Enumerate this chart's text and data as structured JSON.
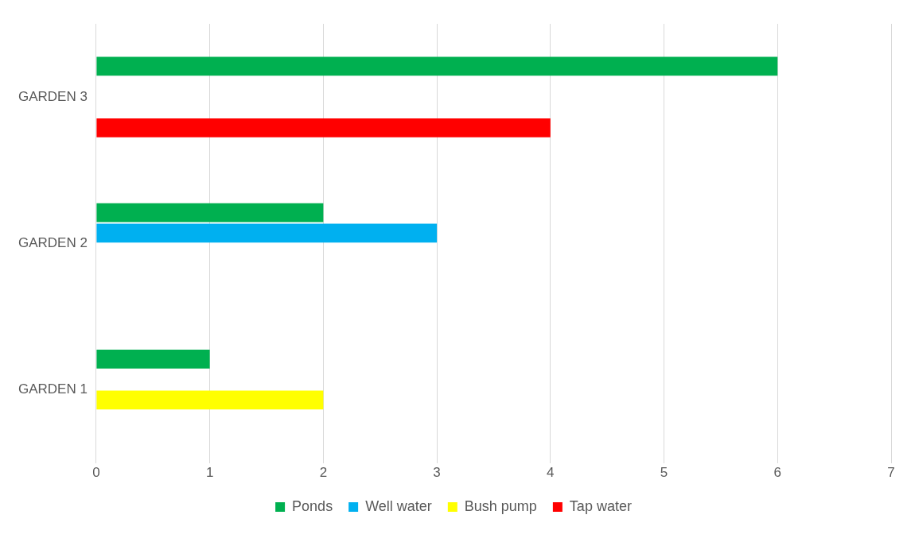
{
  "chart_data": {
    "type": "bar",
    "orientation": "horizontal",
    "categories": [
      "GARDEN 3",
      "GARDEN 2",
      "GARDEN 1"
    ],
    "series": [
      {
        "name": "Ponds",
        "color": "#00b050",
        "values": [
          6,
          2,
          1
        ]
      },
      {
        "name": "Well water",
        "color": "#00b0f0",
        "values": [
          null,
          3,
          null
        ]
      },
      {
        "name": "Bush pump",
        "color": "#ffff00",
        "values": [
          null,
          null,
          2
        ]
      },
      {
        "name": "Tap water",
        "color": "#ff0000",
        "values": [
          4,
          null,
          null
        ]
      }
    ],
    "xlim": [
      0,
      7
    ],
    "xticks": [
      0,
      1,
      2,
      3,
      4,
      5,
      6,
      7
    ],
    "grid": "x",
    "legend": "bottom"
  }
}
